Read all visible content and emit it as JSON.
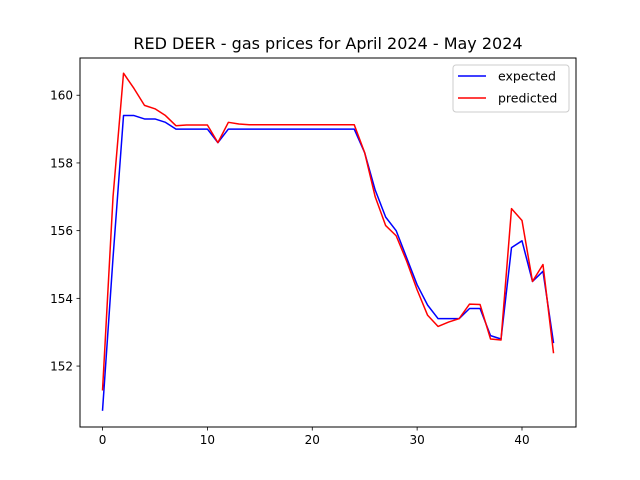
{
  "chart_data": {
    "type": "line",
    "title": "RED DEER - gas prices for April 2024 - May 2024",
    "xlabel": "",
    "ylabel": "",
    "xlim": [
      -2.15,
      45.15
    ],
    "ylim": [
      150.2,
      161.1
    ],
    "x_ticks": [
      0,
      10,
      20,
      30,
      40
    ],
    "y_ticks": [
      152,
      154,
      156,
      158,
      160
    ],
    "grid": false,
    "legend_position": "top-right",
    "series": [
      {
        "name": "expected",
        "color": "#0000ff",
        "x": [
          0,
          1,
          2,
          3,
          4,
          5,
          6,
          7,
          8,
          9,
          10,
          11,
          12,
          13,
          14,
          15,
          16,
          17,
          18,
          19,
          20,
          21,
          22,
          23,
          24,
          25,
          26,
          27,
          28,
          29,
          30,
          31,
          32,
          33,
          34,
          35,
          36,
          37,
          38,
          39,
          40,
          41,
          42,
          43
        ],
        "values": [
          150.7,
          155.2,
          159.4,
          159.4,
          159.3,
          159.3,
          159.2,
          159.0,
          159.0,
          159.0,
          159.0,
          158.6,
          159.0,
          159.0,
          159.0,
          159.0,
          159.0,
          159.0,
          159.0,
          159.0,
          159.0,
          159.0,
          159.0,
          159.0,
          159.0,
          158.3,
          157.2,
          156.4,
          156.0,
          155.2,
          154.4,
          153.8,
          153.4,
          153.4,
          153.4,
          153.7,
          153.7,
          152.9,
          152.8,
          155.5,
          155.7,
          154.5,
          154.8,
          152.7
        ]
      },
      {
        "name": "predicted",
        "color": "#ff0000",
        "x": [
          0,
          1,
          2,
          3,
          4,
          5,
          6,
          7,
          8,
          9,
          10,
          11,
          12,
          13,
          14,
          15,
          16,
          17,
          18,
          19,
          20,
          21,
          22,
          23,
          24,
          25,
          26,
          27,
          28,
          29,
          30,
          31,
          32,
          33,
          34,
          35,
          36,
          37,
          38,
          39,
          40,
          41,
          42,
          43
        ],
        "values": [
          151.3,
          157.0,
          160.65,
          160.2,
          159.7,
          159.6,
          159.4,
          159.1,
          159.12,
          159.12,
          159.12,
          158.6,
          159.2,
          159.15,
          159.13,
          159.13,
          159.13,
          159.13,
          159.13,
          159.13,
          159.13,
          159.13,
          159.13,
          159.13,
          159.13,
          158.3,
          157.0,
          156.15,
          155.85,
          155.1,
          154.25,
          153.5,
          153.17,
          153.3,
          153.4,
          153.83,
          153.82,
          152.8,
          152.77,
          156.65,
          156.3,
          154.5,
          155.0,
          152.4
        ]
      }
    ]
  }
}
